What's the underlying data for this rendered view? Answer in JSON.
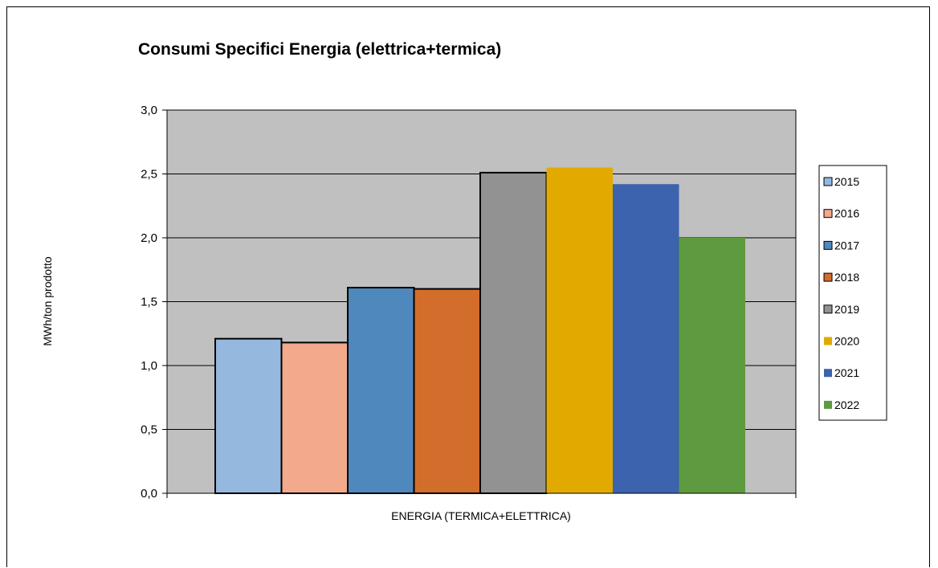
{
  "chart_data": {
    "type": "bar",
    "title": "Consumi Specifici Energia (elettrica+termica)",
    "xlabel": "ENERGIA (TERMICA+ELETTRICA)",
    "ylabel": "MWh/ton prodotto",
    "ylim": [
      0,
      3
    ],
    "yticks": [
      "0,0",
      "0,5",
      "1,0",
      "1,5",
      "2,0",
      "2,5",
      "3,0"
    ],
    "ytick_values": [
      0,
      0.5,
      1.0,
      1.5,
      2.0,
      2.5,
      3.0
    ],
    "grid": true,
    "legend_position": "right",
    "categories": [
      "ENERGIA (TERMICA+ELETTRICA)"
    ],
    "series": [
      {
        "name": "2015",
        "values": [
          1.21
        ],
        "color": "#95b8df",
        "outlined": true
      },
      {
        "name": "2016",
        "values": [
          1.18
        ],
        "color": "#f2a98c",
        "outlined": true
      },
      {
        "name": "2017",
        "values": [
          1.61
        ],
        "color": "#4f88bc",
        "outlined": true
      },
      {
        "name": "2018",
        "values": [
          1.6
        ],
        "color": "#d36d2b",
        "outlined": true
      },
      {
        "name": "2019",
        "values": [
          2.51
        ],
        "color": "#929292",
        "outlined": true
      },
      {
        "name": "2020",
        "values": [
          2.55
        ],
        "color": "#e2aa00",
        "outlined": false
      },
      {
        "name": "2021",
        "values": [
          2.42
        ],
        "color": "#3c63ad",
        "outlined": false
      },
      {
        "name": "2022",
        "values": [
          2.0
        ],
        "color": "#5e9a3f",
        "outlined": false
      }
    ],
    "plot_background": "#c0c0c0"
  }
}
